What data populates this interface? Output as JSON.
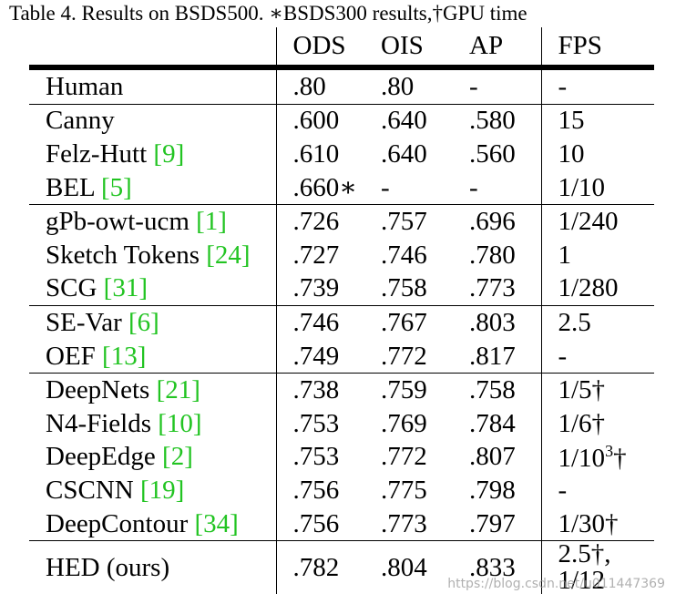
{
  "caption": "Table 4. Results on BSDS500. ∗BSDS300 results,†GPU time",
  "columns": [
    "",
    "ODS",
    "OIS",
    "AP",
    "FPS"
  ],
  "rows": [
    {
      "name": "Human",
      "cite": "",
      "ods": ".80",
      "ois": ".80",
      "ap": "-",
      "fps": "-",
      "group_end": true
    },
    {
      "name": "Canny",
      "cite": "",
      "ods": ".600",
      "ois": ".640",
      "ap": ".580",
      "fps": "15",
      "group_end": false
    },
    {
      "name": "Felz-Hutt ",
      "cite": "[9]",
      "ods": ".610",
      "ois": ".640",
      "ap": ".560",
      "fps": "10",
      "group_end": false
    },
    {
      "name": "BEL ",
      "cite": "[5]",
      "ods": ".660∗",
      "ois": "-",
      "ap": "-",
      "fps": "1/10",
      "group_end": true
    },
    {
      "name": "gPb-owt-ucm ",
      "cite": "[1]",
      "ods": ".726",
      "ois": ".757",
      "ap": ".696",
      "fps": "1/240",
      "group_end": false
    },
    {
      "name": "Sketch Tokens ",
      "cite": "[24]",
      "ods": ".727",
      "ois": ".746",
      "ap": ".780",
      "fps": "1",
      "group_end": false
    },
    {
      "name": "SCG ",
      "cite": "[31]",
      "ods": ".739",
      "ois": ".758",
      "ap": ".773",
      "fps": "1/280",
      "group_end": true
    },
    {
      "name": "SE-Var ",
      "cite": "[6]",
      "ods": ".746",
      "ois": ".767",
      "ap": ".803",
      "fps": "2.5",
      "group_end": false
    },
    {
      "name": "OEF ",
      "cite": "[13]",
      "ods": ".749",
      "ois": ".772",
      "ap": ".817",
      "fps": "-",
      "group_end": true
    },
    {
      "name": "DeepNets ",
      "cite": "[21]",
      "ods": ".738",
      "ois": ".759",
      "ap": ".758",
      "fps": "1/5†",
      "group_end": false
    },
    {
      "name": "N4-Fields ",
      "cite": "[10]",
      "ods": ".753",
      "ois": ".769",
      "ap": ".784",
      "fps": "1/6†",
      "group_end": false
    },
    {
      "name": "DeepEdge ",
      "cite": "[2]",
      "ods": ".753",
      "ois": ".772",
      "ap": ".807",
      "fps": "1/10",
      "fps_sup": "3",
      "fps_tail": "†",
      "group_end": false
    },
    {
      "name": "CSCNN ",
      "cite": "[19]",
      "ods": ".756",
      "ois": ".775",
      "ap": ".798",
      "fps": "-",
      "group_end": false
    },
    {
      "name": "DeepContour ",
      "cite": "[34]",
      "ods": ".756",
      "ois": ".773",
      "ap": ".797",
      "fps": "1/30†",
      "group_end": false
    }
  ],
  "final": {
    "name": "HED (ours)",
    "ods": ".782",
    "ois": ".804",
    "ap": ".833",
    "fps_line1": "2.5†,",
    "fps_line2": "1/12"
  },
  "watermark": "https://blog.csdn.net/u011447369",
  "colors": {
    "cite": "#22c422",
    "text": "#000000"
  }
}
